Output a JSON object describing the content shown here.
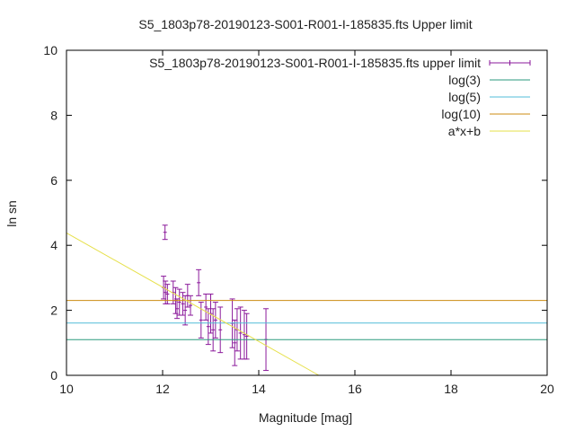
{
  "chart_data": {
    "type": "scatter",
    "title": "S5_1803p78-20190123-S001-R001-I-185835.fts Upper limit",
    "xlabel": "Magnitude [mag]",
    "ylabel": "ln sn",
    "xlim": [
      10,
      20
    ],
    "ylim": [
      0,
      10
    ],
    "xticks": [
      "10",
      "12",
      "14",
      "16",
      "18",
      "20"
    ],
    "yticks": [
      "0",
      "2",
      "4",
      "6",
      "8",
      "10"
    ],
    "legend_position": "top-right",
    "grid": false,
    "series": [
      {
        "name": "S5_1803p78-20190123-S001-R001-I-185835.fts upper limit",
        "kind": "errorbar",
        "color": "#8b1a9b",
        "points": [
          {
            "x": 12.05,
            "y": 4.4,
            "err": 0.22
          },
          {
            "x": 12.02,
            "y": 2.7,
            "err": 0.35
          },
          {
            "x": 12.06,
            "y": 2.55,
            "err": 0.35
          },
          {
            "x": 12.1,
            "y": 2.5,
            "err": 0.3
          },
          {
            "x": 12.22,
            "y": 2.55,
            "err": 0.35
          },
          {
            "x": 12.27,
            "y": 2.3,
            "err": 0.4
          },
          {
            "x": 12.3,
            "y": 2.05,
            "err": 0.3
          },
          {
            "x": 12.35,
            "y": 2.25,
            "err": 0.4
          },
          {
            "x": 12.42,
            "y": 2.2,
            "err": 0.35
          },
          {
            "x": 12.47,
            "y": 2.0,
            "err": 0.45
          },
          {
            "x": 12.52,
            "y": 2.45,
            "err": 0.35
          },
          {
            "x": 12.58,
            "y": 2.15,
            "err": 0.3
          },
          {
            "x": 12.75,
            "y": 2.85,
            "err": 0.4
          },
          {
            "x": 12.8,
            "y": 1.7,
            "err": 0.55
          },
          {
            "x": 12.9,
            "y": 2.1,
            "err": 0.4
          },
          {
            "x": 12.95,
            "y": 1.5,
            "err": 0.55
          },
          {
            "x": 13.0,
            "y": 1.9,
            "err": 0.6
          },
          {
            "x": 13.05,
            "y": 1.4,
            "err": 0.65
          },
          {
            "x": 13.1,
            "y": 1.7,
            "err": 0.55
          },
          {
            "x": 13.2,
            "y": 1.4,
            "err": 0.7
          },
          {
            "x": 13.45,
            "y": 1.6,
            "err": 0.75
          },
          {
            "x": 13.5,
            "y": 1.0,
            "err": 0.7
          },
          {
            "x": 13.55,
            "y": 1.4,
            "err": 0.65
          },
          {
            "x": 13.62,
            "y": 1.3,
            "err": 0.8
          },
          {
            "x": 13.7,
            "y": 1.25,
            "err": 0.75
          },
          {
            "x": 13.75,
            "y": 1.2,
            "err": 0.7
          },
          {
            "x": 14.15,
            "y": 1.1,
            "err": 0.95
          }
        ]
      },
      {
        "name": "log(3)",
        "kind": "hline",
        "value": 1.0986,
        "color": "#2a9a7e"
      },
      {
        "name": "log(5)",
        "kind": "hline",
        "value": 1.6094,
        "color": "#50bcd8"
      },
      {
        "name": "log(10)",
        "kind": "hline",
        "value": 2.3026,
        "color": "#cc8b10"
      },
      {
        "name": "a*x+b",
        "kind": "line",
        "color": "#e6e04a",
        "x": [
          10,
          15.25
        ],
        "y": [
          4.38,
          0
        ]
      }
    ]
  }
}
